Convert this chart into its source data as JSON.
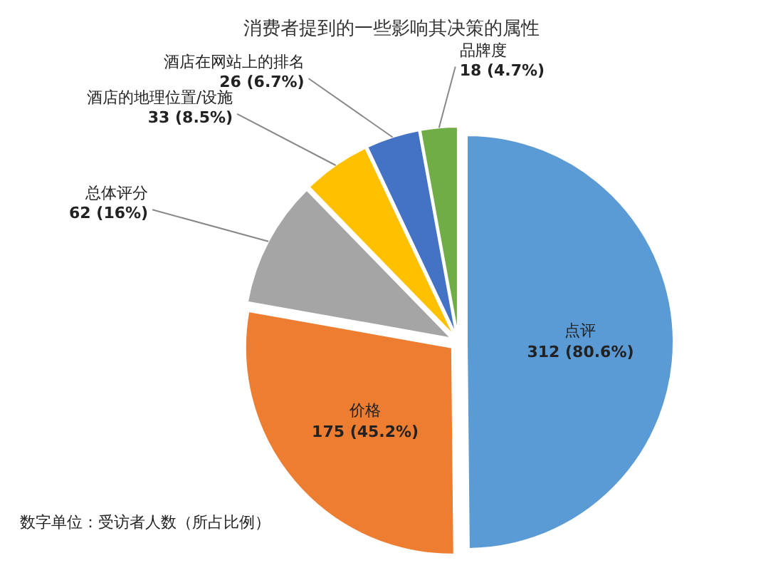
{
  "chart_data": {
    "type": "pie",
    "title": "消费者提到的一些影响其决策的属性",
    "categories": [
      "点评",
      "价格",
      "总体评分",
      "酒店的地理位置/设施",
      "酒店在网站上的排名",
      "品牌度"
    ],
    "values": [
      312,
      175,
      62,
      33,
      26,
      18
    ],
    "colors": [
      "#5b9bd5",
      "#ed7d31",
      "#a5a5a5",
      "#ffc000",
      "#4472c4",
      "#70ad47"
    ],
    "value_labels": [
      "312 (80.6%)",
      "175 (45.2%)",
      "62 (16%)",
      "33 (8.5%)",
      "26 (6.7%)",
      "18 (4.7%)"
    ],
    "annotations": [
      "数字单位：受访者人数（所占比例）"
    ]
  }
}
